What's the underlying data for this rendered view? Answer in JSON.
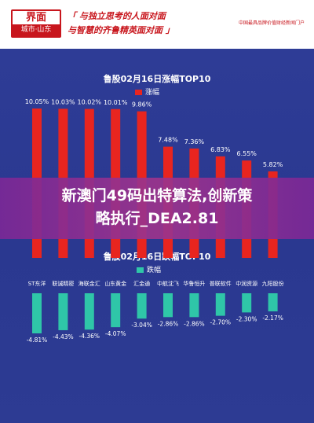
{
  "header": {
    "logo_top": "界面",
    "logo_bottom": "城市·山东",
    "slogan_line1": "「 与独立思考的人面对面",
    "slogan_line2": "与智慧的齐鲁精英面对面 」",
    "brand_right": "中国最具品牌价值财经新闻门户"
  },
  "banner": {
    "line1": "新澳门49码出特算法,创新策",
    "line2": "略执行_DEA2.81"
  },
  "colors": {
    "up": "#e8251f",
    "down": "#2fc6a8",
    "bg": "#2b3a8f"
  },
  "chart_data": [
    {
      "type": "bar",
      "title": "鲁股02月16日涨幅TOP10",
      "legend": "涨幅",
      "color": "#e8251f",
      "values": [
        10.05,
        10.03,
        10.02,
        10.01,
        9.86,
        7.48,
        7.36,
        6.83,
        6.55,
        5.82
      ],
      "labels": [
        "10.05%",
        "10.03%",
        "10.02%",
        "10.01%",
        "9.86%",
        "7.48%",
        "7.36%",
        "6.83%",
        "6.55%",
        "5.82%"
      ]
    },
    {
      "type": "bar",
      "title": "鲁股02月16日跌幅TOP10",
      "legend": "跌幅",
      "color": "#2fc6a8",
      "categories": [
        "ST东洋",
        "联诚精密",
        "海联金汇",
        "山东黄金",
        "汇金通",
        "中航沈飞",
        "华鲁恒升",
        "普联软件",
        "中润资源",
        "九阳股份"
      ],
      "values": [
        -4.81,
        -4.43,
        -4.36,
        -4.07,
        -3.04,
        -2.86,
        -2.86,
        -2.7,
        -2.3,
        -2.17
      ],
      "labels": [
        "-4.81%",
        "-4.43%",
        "-4.36%",
        "-4.07%",
        "-3.04%",
        "-2.86%",
        "-2.86%",
        "-2.70%",
        "-2.30%",
        "-2.17%"
      ]
    }
  ]
}
